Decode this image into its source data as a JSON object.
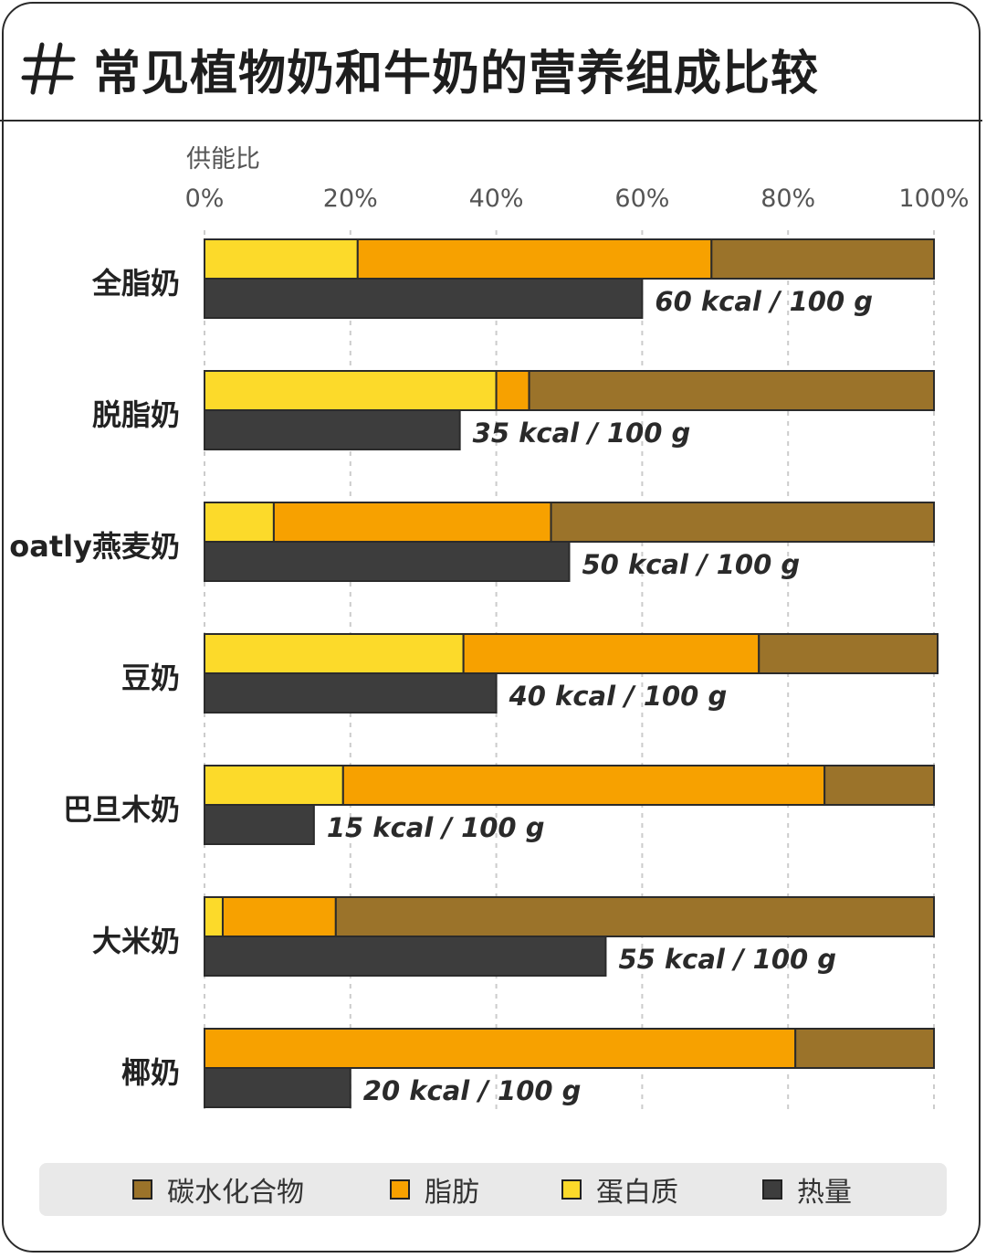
{
  "title": "常见植物奶和牛奶的营养组成比较",
  "chart_data": {
    "type": "bar",
    "title": "常见植物奶和牛奶的营养组成比较",
    "ylabel": "供能比",
    "xlim": [
      0,
      100
    ],
    "x_ticks": [
      "0%",
      "20%",
      "40%",
      "60%",
      "80%",
      "100%"
    ],
    "categories": [
      "全脂奶",
      "脱脂奶",
      "oatly燕麦奶",
      "豆奶",
      "巴旦木奶",
      "大米奶",
      "椰奶"
    ],
    "stacked_series": [
      {
        "name": "蛋白质",
        "color": "#fcda2a",
        "values": [
          21,
          40,
          9.5,
          35.5,
          19,
          2.5,
          0
        ]
      },
      {
        "name": "脂肪",
        "color": "#f7a100",
        "values": [
          48.5,
          4.5,
          38,
          40.5,
          66,
          15.5,
          81
        ]
      },
      {
        "name": "碳水化合物",
        "color": "#9b732a",
        "values": [
          30.5,
          55.5,
          52.5,
          24.5,
          15,
          82,
          19
        ]
      }
    ],
    "energy_series": {
      "name": "热量",
      "color": "#3d3d3d",
      "unit": "kcal / 100 g",
      "values": [
        60,
        35,
        50,
        40,
        15,
        55,
        20
      ],
      "labels": [
        "60 kcal / 100 g",
        "35 kcal / 100 g",
        "50 kcal / 100 g",
        "40 kcal / 100 g",
        "15 kcal / 100 g",
        "55 kcal / 100 g",
        "20 kcal / 100 g"
      ],
      "scale_max": 100
    },
    "legend": [
      "碳水化合物",
      "脂肪",
      "蛋白质",
      "热量"
    ],
    "legend_position": "bottom",
    "grid": true
  },
  "legend_items": [
    {
      "label": "碳水化合物",
      "color": "#9b732a"
    },
    {
      "label": "脂肪",
      "color": "#f7a100"
    },
    {
      "label": "蛋白质",
      "color": "#fcda2a"
    },
    {
      "label": "热量",
      "color": "#3d3d3d"
    }
  ],
  "colors": {
    "border": "#2b2b2b",
    "grid": "#cccccc",
    "legend_bg": "#e9e9e9"
  }
}
